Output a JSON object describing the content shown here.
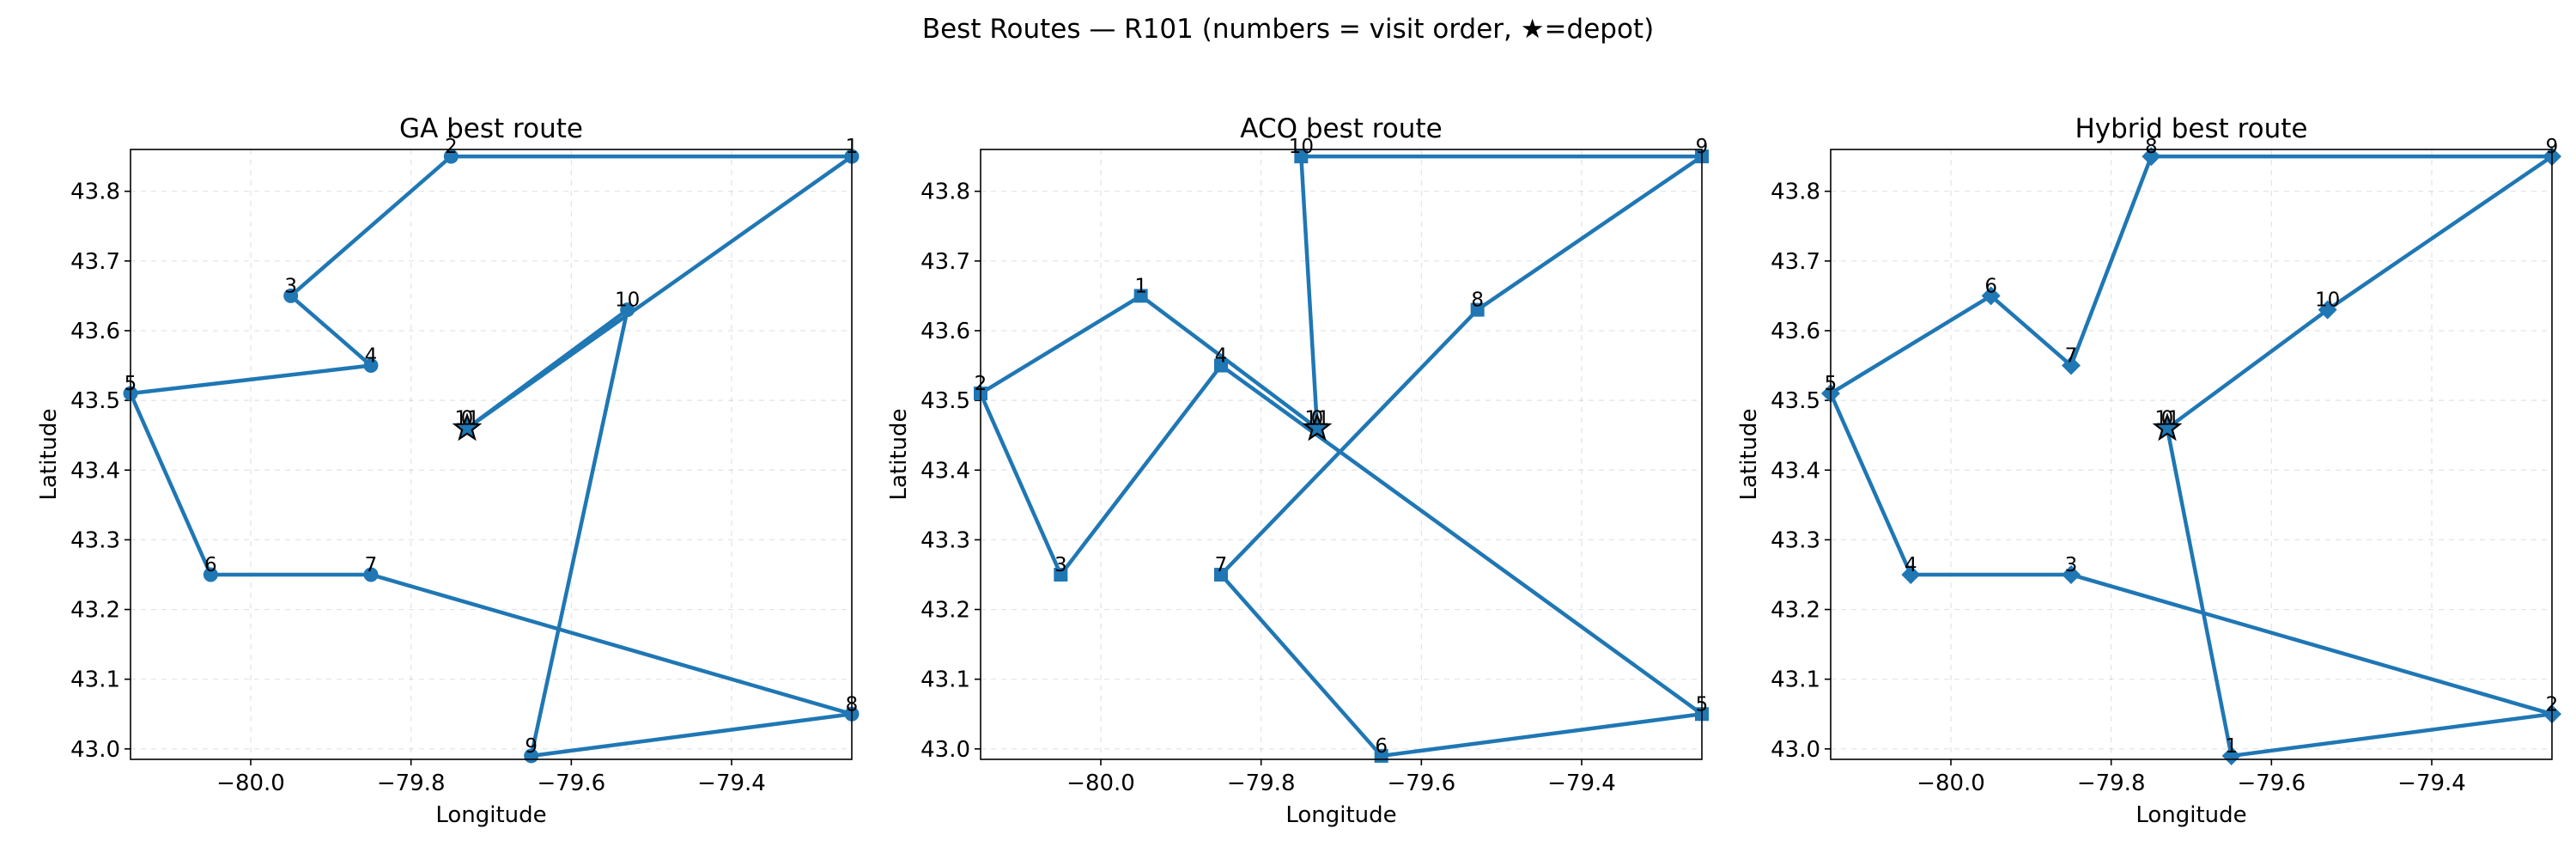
{
  "suptitle": "Best Routes — R101 (numbers = visit order, ★=depot)",
  "colors": {
    "route": "#1f77b4",
    "depot_edge": "#000000"
  },
  "chart_data": [
    {
      "type": "scatter",
      "title": "GA best route",
      "xlabel": "Longitude",
      "ylabel": "Latitude",
      "marker": "circle",
      "xlim": [
        -80.15,
        -79.25
      ],
      "ylim": [
        42.985,
        43.86
      ],
      "xticks": [
        -80.0,
        -79.8,
        -79.6,
        -79.4
      ],
      "xtick_labels": [
        "−80.0",
        "−79.8",
        "−79.6",
        "−79.4"
      ],
      "yticks": [
        43.0,
        43.1,
        43.2,
        43.3,
        43.4,
        43.5,
        43.6,
        43.7,
        43.8
      ],
      "ytick_labels": [
        "43.0",
        "43.1",
        "43.2",
        "43.3",
        "43.4",
        "43.5",
        "43.6",
        "43.7",
        "43.8"
      ],
      "grid": true,
      "depot": {
        "x": -79.73,
        "y": 43.46,
        "labels": [
          "11",
          "0"
        ]
      },
      "route": [
        {
          "label": "1",
          "x": -79.25,
          "y": 43.85
        },
        {
          "label": "2",
          "x": -79.75,
          "y": 43.85
        },
        {
          "label": "3",
          "x": -79.95,
          "y": 43.65
        },
        {
          "label": "4",
          "x": -79.85,
          "y": 43.55
        },
        {
          "label": "5",
          "x": -80.15,
          "y": 43.51
        },
        {
          "label": "6",
          "x": -80.05,
          "y": 43.25
        },
        {
          "label": "7",
          "x": -79.85,
          "y": 43.25
        },
        {
          "label": "8",
          "x": -79.25,
          "y": 43.05
        },
        {
          "label": "9",
          "x": -79.65,
          "y": 42.99
        },
        {
          "label": "10",
          "x": -79.53,
          "y": 43.63
        }
      ]
    },
    {
      "type": "scatter",
      "title": "ACO best route",
      "xlabel": "Longitude",
      "ylabel": "Latitude",
      "marker": "square",
      "xlim": [
        -80.15,
        -79.25
      ],
      "ylim": [
        42.985,
        43.86
      ],
      "xticks": [
        -80.0,
        -79.8,
        -79.6,
        -79.4
      ],
      "xtick_labels": [
        "−80.0",
        "−79.8",
        "−79.6",
        "−79.4"
      ],
      "yticks": [
        43.0,
        43.1,
        43.2,
        43.3,
        43.4,
        43.5,
        43.6,
        43.7,
        43.8
      ],
      "ytick_labels": [
        "43.0",
        "43.1",
        "43.2",
        "43.3",
        "43.4",
        "43.5",
        "43.6",
        "43.7",
        "43.8"
      ],
      "grid": true,
      "depot": {
        "x": -79.73,
        "y": 43.46,
        "labels": [
          "11",
          "0"
        ]
      },
      "route": [
        {
          "label": "1",
          "x": -79.95,
          "y": 43.65
        },
        {
          "label": "2",
          "x": -80.15,
          "y": 43.51
        },
        {
          "label": "3",
          "x": -80.05,
          "y": 43.25
        },
        {
          "label": "4",
          "x": -79.85,
          "y": 43.55
        },
        {
          "label": "5",
          "x": -79.25,
          "y": 43.05
        },
        {
          "label": "6",
          "x": -79.65,
          "y": 42.99
        },
        {
          "label": "7",
          "x": -79.85,
          "y": 43.25
        },
        {
          "label": "8",
          "x": -79.53,
          "y": 43.63
        },
        {
          "label": "9",
          "x": -79.25,
          "y": 43.85
        },
        {
          "label": "10",
          "x": -79.75,
          "y": 43.85
        }
      ]
    },
    {
      "type": "scatter",
      "title": "Hybrid best route",
      "xlabel": "Longitude",
      "ylabel": "Latitude",
      "marker": "diamond",
      "xlim": [
        -80.15,
        -79.25
      ],
      "ylim": [
        42.985,
        43.86
      ],
      "xticks": [
        -80.0,
        -79.8,
        -79.6,
        -79.4
      ],
      "xtick_labels": [
        "−80.0",
        "−79.8",
        "−79.6",
        "−79.4"
      ],
      "yticks": [
        43.0,
        43.1,
        43.2,
        43.3,
        43.4,
        43.5,
        43.6,
        43.7,
        43.8
      ],
      "ytick_labels": [
        "43.0",
        "43.1",
        "43.2",
        "43.3",
        "43.4",
        "43.5",
        "43.6",
        "43.7",
        "43.8"
      ],
      "grid": true,
      "depot": {
        "x": -79.73,
        "y": 43.46,
        "labels": [
          "11",
          "0"
        ]
      },
      "route": [
        {
          "label": "1",
          "x": -79.65,
          "y": 42.99
        },
        {
          "label": "2",
          "x": -79.25,
          "y": 43.05
        },
        {
          "label": "3",
          "x": -79.85,
          "y": 43.25
        },
        {
          "label": "4",
          "x": -80.05,
          "y": 43.25
        },
        {
          "label": "5",
          "x": -80.15,
          "y": 43.51
        },
        {
          "label": "6",
          "x": -79.95,
          "y": 43.65
        },
        {
          "label": "7",
          "x": -79.85,
          "y": 43.55
        },
        {
          "label": "8",
          "x": -79.75,
          "y": 43.85
        },
        {
          "label": "9",
          "x": -79.25,
          "y": 43.85
        },
        {
          "label": "10",
          "x": -79.53,
          "y": 43.63
        }
      ]
    }
  ]
}
